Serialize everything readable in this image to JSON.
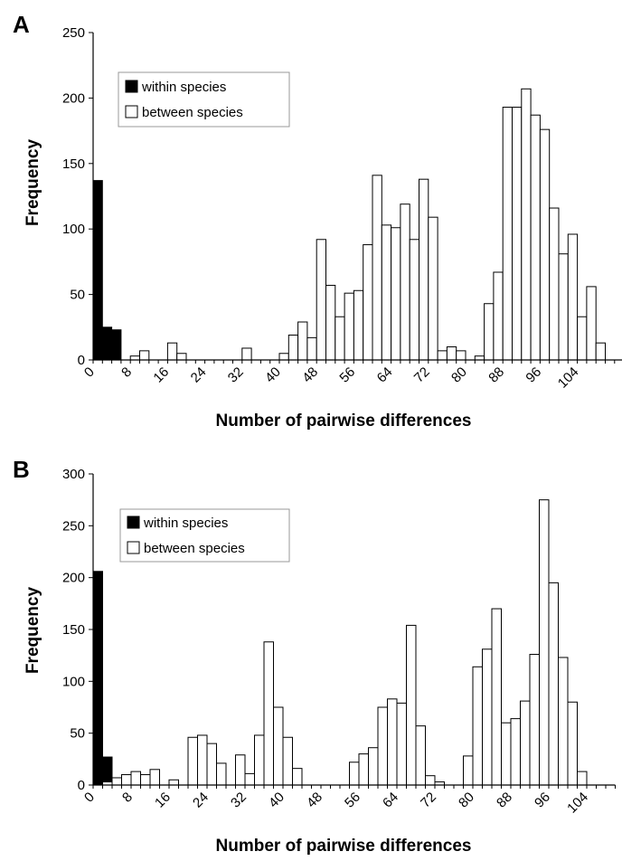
{
  "chart_data": [
    {
      "panel": "A",
      "type": "bar",
      "xlabel": "Number of pairwise differences",
      "ylabel": "Frequency",
      "ylim": [
        0,
        250
      ],
      "yticks": [
        0,
        50,
        100,
        150,
        200,
        250
      ],
      "xtick_labels": [
        "0",
        "8",
        "16",
        "24",
        "32",
        "40",
        "48",
        "56",
        "64",
        "72",
        "80",
        "88",
        "96",
        "104"
      ],
      "bin_width": 2,
      "x_start": 0,
      "legend": {
        "position": "top-left",
        "entries": [
          "within species",
          "between species"
        ]
      },
      "series": [
        {
          "name": "within species",
          "color": "#000000",
          "values": [
            137,
            25,
            23,
            0,
            0,
            0,
            0,
            0,
            0,
            0,
            0,
            0,
            0,
            0,
            0,
            0,
            0,
            0,
            0,
            0,
            0,
            0,
            0,
            0,
            0,
            0,
            0,
            0,
            0,
            0,
            0,
            0,
            0,
            0,
            0,
            0,
            0,
            0,
            0,
            0,
            0,
            0,
            0,
            0,
            0,
            0,
            0,
            0,
            0,
            0,
            0,
            0,
            0,
            0,
            0,
            0,
            0,
            0
          ]
        },
        {
          "name": "between species",
          "color": "#ffffff",
          "values": [
            0,
            0,
            0,
            0,
            3,
            7,
            0,
            0,
            13,
            5,
            0,
            0,
            0,
            0,
            0,
            0,
            9,
            0,
            0,
            0,
            5,
            19,
            29,
            17,
            92,
            57,
            33,
            51,
            53,
            88,
            141,
            103,
            101,
            119,
            92,
            138,
            109,
            7,
            10,
            7,
            0,
            3,
            43,
            67,
            193,
            193,
            207,
            187,
            176,
            116,
            81,
            96,
            33,
            56,
            13,
            0,
            0,
            0
          ]
        }
      ]
    },
    {
      "panel": "B",
      "type": "bar",
      "xlabel": "Number of pairwise differences",
      "ylabel": "Frequency",
      "ylim": [
        0,
        300
      ],
      "yticks": [
        0,
        50,
        100,
        150,
        200,
        250,
        300
      ],
      "xtick_labels": [
        "0",
        "8",
        "16",
        "24",
        "32",
        "40",
        "48",
        "56",
        "64",
        "72",
        "80",
        "88",
        "96",
        "104"
      ],
      "bin_width": 2,
      "x_start": 0,
      "legend": {
        "position": "top-left",
        "entries": [
          "within species",
          "between species"
        ]
      },
      "series": [
        {
          "name": "within species",
          "color": "#000000",
          "values": [
            206,
            27,
            0,
            0,
            0,
            0,
            0,
            0,
            0,
            0,
            0,
            0,
            0,
            0,
            0,
            0,
            0,
            0,
            0,
            0,
            0,
            0,
            0,
            0,
            0,
            0,
            0,
            0,
            0,
            0,
            0,
            0,
            0,
            0,
            0,
            0,
            0,
            0,
            0,
            0,
            0,
            0,
            0,
            0,
            0,
            0,
            0,
            0,
            0,
            0,
            0,
            0,
            0,
            0,
            0
          ]
        },
        {
          "name": "between species",
          "color": "#ffffff",
          "values": [
            0,
            3,
            7,
            10,
            13,
            10,
            15,
            0,
            5,
            0,
            46,
            48,
            40,
            21,
            0,
            29,
            11,
            48,
            138,
            75,
            46,
            16,
            0,
            0,
            0,
            0,
            0,
            22,
            30,
            36,
            75,
            83,
            79,
            154,
            57,
            9,
            3,
            0,
            0,
            28,
            114,
            131,
            170,
            60,
            64,
            81,
            126,
            275,
            195,
            123,
            80,
            13,
            0,
            0,
            0
          ]
        }
      ]
    }
  ]
}
